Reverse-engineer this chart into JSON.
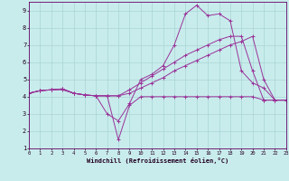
{
  "background_color": "#c8ecec",
  "grid_color": "#aad4d4",
  "line_color": "#993399",
  "marker_color": "#993399",
  "xlabel": "Windchill (Refroidissement éolien,°C)",
  "xlim": [
    0,
    23
  ],
  "ylim": [
    1,
    9.5
  ],
  "xticks": [
    0,
    1,
    2,
    3,
    4,
    5,
    6,
    7,
    8,
    9,
    10,
    11,
    12,
    13,
    14,
    15,
    16,
    17,
    18,
    19,
    20,
    21,
    22,
    23
  ],
  "yticks": [
    1,
    2,
    3,
    4,
    5,
    6,
    7,
    8,
    9
  ],
  "lines": [
    {
      "x": [
        0,
        1,
        2,
        3,
        4,
        5,
        6,
        7,
        8,
        9,
        10,
        11,
        12,
        13,
        14,
        15,
        16,
        17,
        18,
        19,
        20,
        21,
        22,
        23
      ],
      "y": [
        4.2,
        4.35,
        4.4,
        4.4,
        4.2,
        4.1,
        4.05,
        4.05,
        1.5,
        3.5,
        4.0,
        4.0,
        4.0,
        4.0,
        4.0,
        4.0,
        4.0,
        4.0,
        4.0,
        4.0,
        4.0,
        3.8,
        3.8,
        3.8
      ]
    },
    {
      "x": [
        0,
        1,
        2,
        3,
        4,
        5,
        6,
        7,
        8,
        9,
        10,
        11,
        12,
        13,
        14,
        15,
        16,
        17,
        18,
        19,
        20,
        21,
        22,
        23
      ],
      "y": [
        4.2,
        4.35,
        4.4,
        4.45,
        4.2,
        4.1,
        4.05,
        3.0,
        2.6,
        3.6,
        5.0,
        5.3,
        5.8,
        7.0,
        8.8,
        9.3,
        8.7,
        8.8,
        8.4,
        5.5,
        4.8,
        4.5,
        3.8,
        3.8
      ]
    },
    {
      "x": [
        0,
        1,
        2,
        3,
        4,
        5,
        6,
        7,
        8,
        9,
        10,
        11,
        12,
        13,
        14,
        15,
        16,
        17,
        18,
        19,
        20,
        21,
        22,
        23
      ],
      "y": [
        4.2,
        4.35,
        4.4,
        4.45,
        4.2,
        4.1,
        4.05,
        4.05,
        4.05,
        4.4,
        4.8,
        5.2,
        5.6,
        6.0,
        6.4,
        6.7,
        7.0,
        7.3,
        7.5,
        7.5,
        5.5,
        3.8,
        3.8,
        3.8
      ]
    },
    {
      "x": [
        0,
        1,
        2,
        3,
        4,
        5,
        6,
        7,
        8,
        9,
        10,
        11,
        12,
        13,
        14,
        15,
        16,
        17,
        18,
        19,
        20,
        21,
        22,
        23
      ],
      "y": [
        4.2,
        4.35,
        4.4,
        4.45,
        4.2,
        4.1,
        4.05,
        4.05,
        4.05,
        4.2,
        4.5,
        4.8,
        5.1,
        5.5,
        5.8,
        6.1,
        6.4,
        6.7,
        7.0,
        7.2,
        7.5,
        5.0,
        3.8,
        3.8
      ]
    }
  ]
}
